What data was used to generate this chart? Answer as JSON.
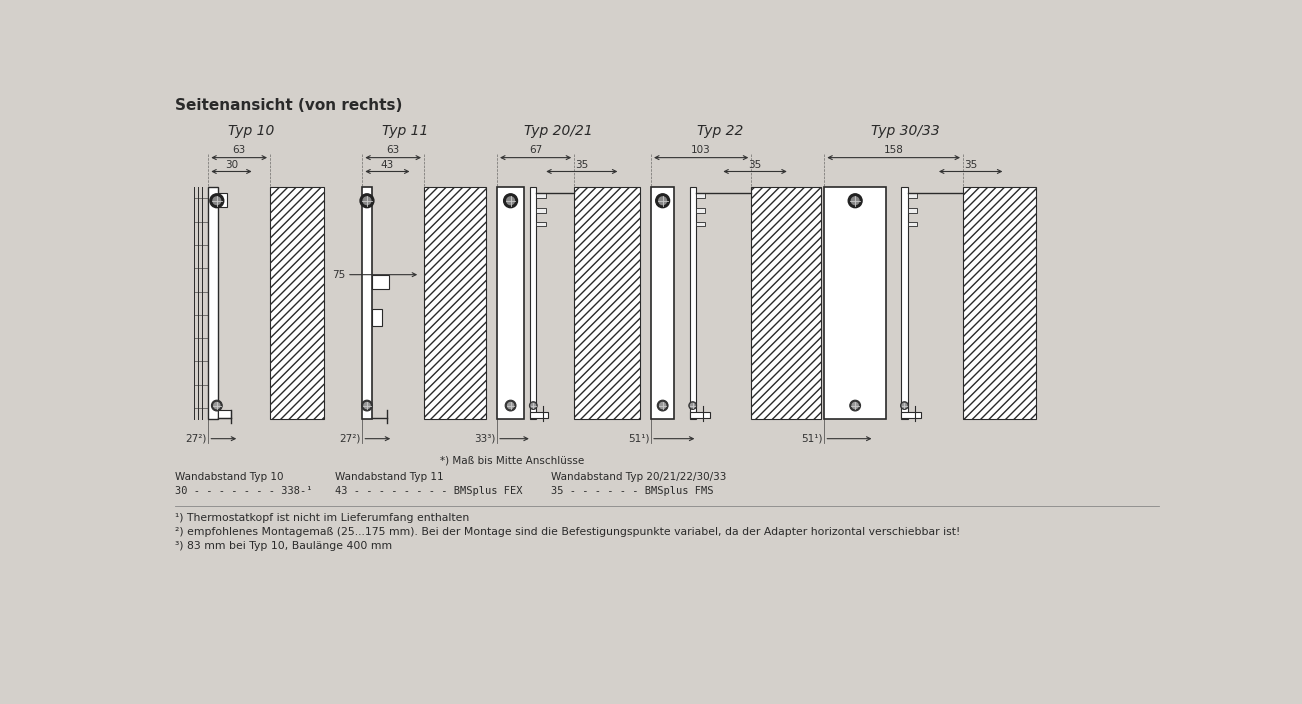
{
  "bg_color": "#d4d0cb",
  "title": "Seitenansicht (von rechts)",
  "types": [
    "Typ 10",
    "Typ 11",
    "Typ 20/21",
    "Typ 22",
    "Typ 30/33"
  ],
  "dim1": [
    "63",
    "63",
    "67",
    "103",
    "158"
  ],
  "dim2": [
    "30",
    "43",
    "35",
    "35",
    "35"
  ],
  "bottom_dims": [
    "27²)",
    "27²)",
    "33³)",
    "51¹)",
    "51¹)"
  ],
  "footnote_star": "*) Maß bis Mitte Anschlüsse",
  "wand_headers": [
    "Wandabstand Typ 10",
    "Wandabstand Typ 11",
    "Wandabstand Typ 20/21/22/30/33"
  ],
  "wand_values": [
    "30 - - - - - - - 338-¹",
    "43 - - - - - - - - BMSplus FEX",
    "35 - - - - - - BMSplus FMS"
  ],
  "footnotes": [
    "¹) Thermostatkopf ist nicht im Lieferumfang enthalten",
    "²) empfohlenes Montagemaß (25...175 mm). Bei der Montage sind die Befestigungspunkte variabel, da der Adapter horizontal verschiebbar ist!",
    "³) 83 mm bei Typ 10, Baulänge 400 mm"
  ],
  "lc": "#2a2a2a",
  "pc": "#ffffff",
  "dim_color": "#333333"
}
